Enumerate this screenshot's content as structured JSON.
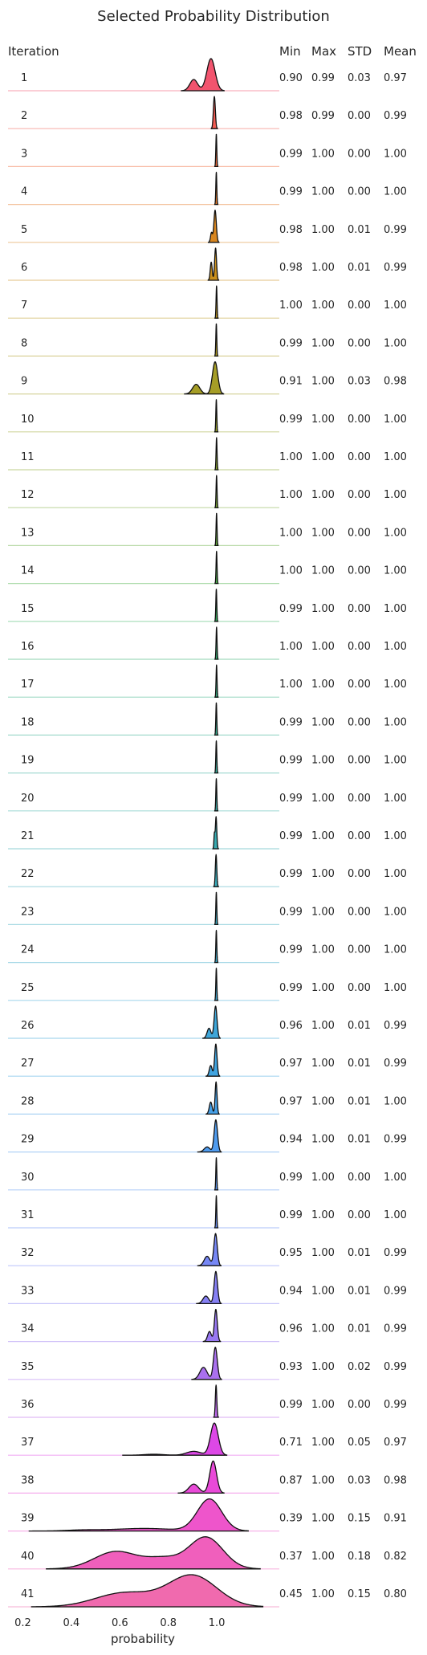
{
  "chart_data": {
    "type": "ridgeline",
    "title": "Selected Probability Distribution",
    "xlabel": "probability",
    "xlim": [
      0.2,
      1.2
    ],
    "xticks": [
      "0.2",
      "0.4",
      "0.6",
      "0.8",
      "1.0"
    ],
    "xtick_values": [
      0.2,
      0.4,
      0.6,
      0.8,
      1.0
    ],
    "columns": [
      "Iteration",
      "Min",
      "Max",
      "STD",
      "Mean"
    ],
    "rows": [
      {
        "iteration": "1",
        "min": "0.90",
        "max": "0.99",
        "std": "0.03",
        "mean": "0.97",
        "color": "#f2546e",
        "peaks": [
          [
            0.976,
            0.017,
            1.0
          ],
          [
            0.905,
            0.016,
            0.35
          ]
        ]
      },
      {
        "iteration": "2",
        "min": "0.98",
        "max": "0.99",
        "std": "0.00",
        "mean": "0.99",
        "color": "#f25b52",
        "peaks": [
          [
            0.99,
            0.004,
            1.0
          ]
        ]
      },
      {
        "iteration": "3",
        "min": "0.99",
        "max": "1.00",
        "std": "0.00",
        "mean": "1.00",
        "color": "#ef6a3c",
        "peaks": [
          [
            0.998,
            0.002,
            0.55
          ]
        ]
      },
      {
        "iteration": "4",
        "min": "0.99",
        "max": "1.00",
        "std": "0.00",
        "mean": "1.00",
        "color": "#e47a2a",
        "peaks": [
          [
            0.998,
            0.002,
            0.6
          ]
        ]
      },
      {
        "iteration": "5",
        "min": "0.98",
        "max": "1.00",
        "std": "0.01",
        "mean": "0.99",
        "color": "#d88620",
        "peaks": [
          [
            0.993,
            0.005,
            1.0
          ],
          [
            0.978,
            0.004,
            0.3
          ]
        ]
      },
      {
        "iteration": "6",
        "min": "0.98",
        "max": "1.00",
        "std": "0.01",
        "mean": "0.99",
        "color": "#c98f1c",
        "peaks": [
          [
            0.995,
            0.004,
            0.8
          ],
          [
            0.977,
            0.004,
            0.45
          ]
        ]
      },
      {
        "iteration": "7",
        "min": "1.00",
        "max": "1.00",
        "std": "0.00",
        "mean": "1.00",
        "color": "#bd9620",
        "peaks": [
          [
            0.999,
            0.002,
            0.5
          ]
        ]
      },
      {
        "iteration": "8",
        "min": "0.99",
        "max": "1.00",
        "std": "0.00",
        "mean": "1.00",
        "color": "#b09a22",
        "peaks": [
          [
            0.998,
            0.002,
            0.55
          ]
        ]
      },
      {
        "iteration": "9",
        "min": "0.91",
        "max": "1.00",
        "std": "0.03",
        "mean": "0.98",
        "color": "#a59d26",
        "peaks": [
          [
            0.993,
            0.011,
            1.0
          ],
          [
            0.915,
            0.015,
            0.3
          ]
        ]
      },
      {
        "iteration": "10",
        "min": "0.99",
        "max": "1.00",
        "std": "0.00",
        "mean": "1.00",
        "color": "#98a22a",
        "peaks": [
          [
            0.998,
            0.002,
            0.55
          ]
        ]
      },
      {
        "iteration": "11",
        "min": "1.00",
        "max": "1.00",
        "std": "0.00",
        "mean": "1.00",
        "color": "#8aa630",
        "peaks": [
          [
            0.999,
            0.002,
            0.5
          ]
        ]
      },
      {
        "iteration": "12",
        "min": "1.00",
        "max": "1.00",
        "std": "0.00",
        "mean": "1.00",
        "color": "#7aa936",
        "peaks": [
          [
            0.999,
            0.002,
            0.5
          ]
        ]
      },
      {
        "iteration": "13",
        "min": "1.00",
        "max": "1.00",
        "std": "0.00",
        "mean": "1.00",
        "color": "#66ad3e",
        "peaks": [
          [
            0.999,
            0.002,
            0.5
          ]
        ]
      },
      {
        "iteration": "14",
        "min": "1.00",
        "max": "1.00",
        "std": "0.00",
        "mean": "1.00",
        "color": "#4cb14a",
        "peaks": [
          [
            0.999,
            0.002,
            0.5
          ]
        ]
      },
      {
        "iteration": "15",
        "min": "0.99",
        "max": "1.00",
        "std": "0.00",
        "mean": "1.00",
        "color": "#33b25e",
        "peaks": [
          [
            0.998,
            0.002,
            0.55
          ]
        ]
      },
      {
        "iteration": "16",
        "min": "1.00",
        "max": "1.00",
        "std": "0.00",
        "mean": "1.00",
        "color": "#33b072",
        "peaks": [
          [
            0.999,
            0.002,
            0.5
          ]
        ]
      },
      {
        "iteration": "17",
        "min": "1.00",
        "max": "1.00",
        "std": "0.00",
        "mean": "1.00",
        "color": "#35af82",
        "peaks": [
          [
            0.999,
            0.002,
            0.5
          ]
        ]
      },
      {
        "iteration": "18",
        "min": "0.99",
        "max": "1.00",
        "std": "0.00",
        "mean": "1.00",
        "color": "#36ae90",
        "peaks": [
          [
            0.998,
            0.002,
            0.55
          ]
        ]
      },
      {
        "iteration": "19",
        "min": "0.99",
        "max": "1.00",
        "std": "0.00",
        "mean": "1.00",
        "color": "#37ad9c",
        "peaks": [
          [
            0.998,
            0.002,
            0.6
          ]
        ]
      },
      {
        "iteration": "20",
        "min": "0.99",
        "max": "1.00",
        "std": "0.00",
        "mean": "1.00",
        "color": "#38aca7",
        "peaks": [
          [
            0.998,
            0.002,
            0.55
          ]
        ]
      },
      {
        "iteration": "21",
        "min": "0.99",
        "max": "1.00",
        "std": "0.00",
        "mean": "1.00",
        "color": "#39abb1",
        "peaks": [
          [
            0.997,
            0.003,
            0.45
          ],
          [
            0.99,
            0.002,
            0.2
          ]
        ]
      },
      {
        "iteration": "22",
        "min": "0.99",
        "max": "1.00",
        "std": "0.00",
        "mean": "1.00",
        "color": "#3aabba",
        "peaks": [
          [
            0.997,
            0.003,
            0.4
          ]
        ]
      },
      {
        "iteration": "23",
        "min": "0.99",
        "max": "1.00",
        "std": "0.00",
        "mean": "1.00",
        "color": "#3baac2",
        "peaks": [
          [
            0.998,
            0.002,
            0.55
          ]
        ]
      },
      {
        "iteration": "24",
        "min": "0.99",
        "max": "1.00",
        "std": "0.00",
        "mean": "1.00",
        "color": "#3ca9ca",
        "peaks": [
          [
            0.998,
            0.002,
            0.55
          ]
        ]
      },
      {
        "iteration": "25",
        "min": "0.99",
        "max": "1.00",
        "std": "0.00",
        "mean": "1.00",
        "color": "#3da8d2",
        "peaks": [
          [
            0.998,
            0.002,
            0.5
          ]
        ]
      },
      {
        "iteration": "26",
        "min": "0.96",
        "max": "1.00",
        "std": "0.01",
        "mean": "0.99",
        "color": "#3ea6d9",
        "peaks": [
          [
            0.995,
            0.006,
            0.8
          ],
          [
            0.968,
            0.008,
            0.25
          ]
        ]
      },
      {
        "iteration": "27",
        "min": "0.97",
        "max": "1.00",
        "std": "0.01",
        "mean": "0.99",
        "color": "#40a4e0",
        "peaks": [
          [
            0.996,
            0.005,
            0.75
          ],
          [
            0.975,
            0.006,
            0.25
          ]
        ]
      },
      {
        "iteration": "28",
        "min": "0.97",
        "max": "1.00",
        "std": "0.01",
        "mean": "1.00",
        "color": "#46a0e7",
        "peaks": [
          [
            0.997,
            0.004,
            0.8
          ],
          [
            0.975,
            0.006,
            0.3
          ]
        ]
      },
      {
        "iteration": "29",
        "min": "0.94",
        "max": "1.00",
        "std": "0.01",
        "mean": "0.99",
        "color": "#4f9bee",
        "peaks": [
          [
            0.996,
            0.007,
            0.95
          ],
          [
            0.96,
            0.012,
            0.15
          ]
        ]
      },
      {
        "iteration": "30",
        "min": "0.99",
        "max": "1.00",
        "std": "0.00",
        "mean": "1.00",
        "color": "#5995f2",
        "peaks": [
          [
            0.998,
            0.002,
            0.55
          ]
        ]
      },
      {
        "iteration": "31",
        "min": "0.99",
        "max": "1.00",
        "std": "0.00",
        "mean": "1.00",
        "color": "#668ef4",
        "peaks": [
          [
            0.998,
            0.002,
            0.55
          ]
        ]
      },
      {
        "iteration": "32",
        "min": "0.95",
        "max": "1.00",
        "std": "0.01",
        "mean": "0.99",
        "color": "#7687f5",
        "peaks": [
          [
            0.995,
            0.007,
            0.85
          ],
          [
            0.96,
            0.012,
            0.25
          ]
        ]
      },
      {
        "iteration": "33",
        "min": "0.94",
        "max": "1.00",
        "std": "0.01",
        "mean": "0.99",
        "color": "#8680f4",
        "peaks": [
          [
            0.996,
            0.007,
            0.85
          ],
          [
            0.955,
            0.012,
            0.2
          ]
        ]
      },
      {
        "iteration": "34",
        "min": "0.96",
        "max": "1.00",
        "std": "0.01",
        "mean": "0.99",
        "color": "#9878f2",
        "peaks": [
          [
            0.996,
            0.006,
            0.8
          ],
          [
            0.97,
            0.008,
            0.25
          ]
        ]
      },
      {
        "iteration": "35",
        "min": "0.93",
        "max": "1.00",
        "std": "0.02",
        "mean": "0.99",
        "color": "#aa70ef",
        "peaks": [
          [
            0.994,
            0.008,
            0.8
          ],
          [
            0.945,
            0.015,
            0.3
          ]
        ]
      },
      {
        "iteration": "36",
        "min": "0.99",
        "max": "1.00",
        "std": "0.00",
        "mean": "0.99",
        "color": "#bb68ea",
        "peaks": [
          [
            0.997,
            0.003,
            0.55
          ]
        ]
      },
      {
        "iteration": "37",
        "min": "0.71",
        "max": "1.00",
        "std": "0.05",
        "mean": "0.97",
        "color": "#dd48e6",
        "peaks": [
          [
            0.99,
            0.016,
            1.0
          ],
          [
            0.905,
            0.03,
            0.12
          ],
          [
            0.74,
            0.04,
            0.03
          ]
        ]
      },
      {
        "iteration": "38",
        "min": "0.87",
        "max": "1.00",
        "std": "0.03",
        "mean": "0.98",
        "color": "#e94ad8",
        "peaks": [
          [
            0.985,
            0.014,
            1.0
          ],
          [
            0.905,
            0.02,
            0.28
          ]
        ]
      },
      {
        "iteration": "39",
        "min": "0.39",
        "max": "1.00",
        "std": "0.15",
        "mean": "0.91",
        "color": "#ee55cb",
        "peaks": [
          [
            0.97,
            0.05,
            1.0
          ],
          [
            0.7,
            0.12,
            0.08
          ],
          [
            0.45,
            0.07,
            0.03
          ]
        ]
      },
      {
        "iteration": "40",
        "min": "0.37",
        "max": "1.00",
        "std": "0.18",
        "mean": "0.82",
        "color": "#f05fbc",
        "peaks": [
          [
            0.955,
            0.07,
            1.0
          ],
          [
            0.585,
            0.09,
            0.55
          ],
          [
            0.78,
            0.07,
            0.3
          ]
        ]
      },
      {
        "iteration": "41",
        "min": "0.45",
        "max": "1.00",
        "std": "0.15",
        "mean": "0.80",
        "color": "#f06aae",
        "peaks": [
          [
            0.9,
            0.1,
            1.0
          ],
          [
            0.62,
            0.12,
            0.45
          ]
        ]
      }
    ]
  }
}
